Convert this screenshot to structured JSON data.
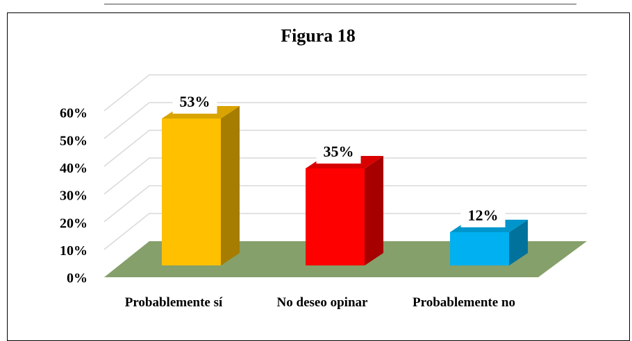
{
  "chart_data": {
    "type": "bar3d",
    "title": "Figura 18",
    "categories": [
      "Probablemente sí",
      "No deseo opinar",
      "Probablemente no"
    ],
    "values": [
      53,
      35,
      12
    ],
    "value_labels": [
      "53%",
      "35%",
      "12%"
    ],
    "colors": [
      "#ffc000",
      "#ff0000",
      "#00b0f0"
    ],
    "ylim": [
      0,
      60
    ],
    "yticks": [
      {
        "value": 0,
        "label": "0%"
      },
      {
        "value": 10,
        "label": "10%"
      },
      {
        "value": 20,
        "label": "20%"
      },
      {
        "value": 30,
        "label": "30%"
      },
      {
        "value": 40,
        "label": "40%"
      },
      {
        "value": 50,
        "label": "50%"
      },
      {
        "value": 60,
        "label": "60%"
      }
    ],
    "grid": true
  }
}
